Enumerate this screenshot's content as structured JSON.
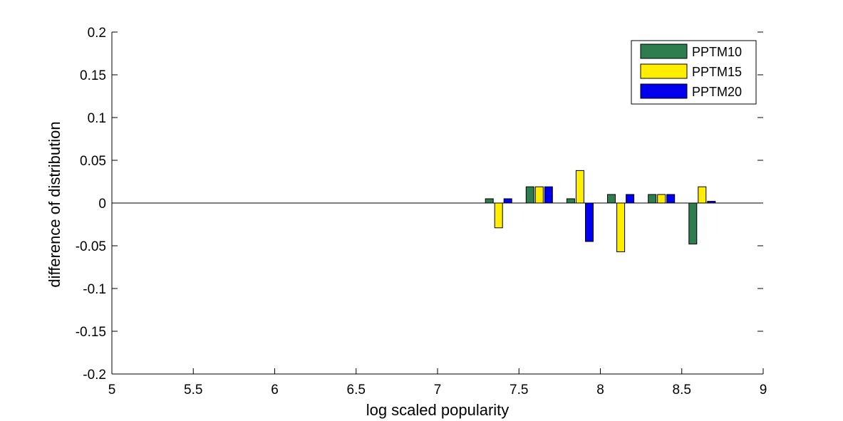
{
  "chart_data": {
    "type": "bar",
    "title": "",
    "xlabel": "log scaled popularity",
    "ylabel": "difference of distribution",
    "xlim": [
      5,
      9
    ],
    "ylim": [
      -0.2,
      0.2
    ],
    "x_ticks": [
      5,
      5.5,
      6,
      6.5,
      7,
      7.5,
      8,
      8.5,
      9
    ],
    "x_tick_labels": [
      "5",
      "5.5",
      "6",
      "6.5",
      "7",
      "7.5",
      "8",
      "8.5",
      "9"
    ],
    "y_ticks": [
      -0.2,
      -0.15,
      -0.1,
      -0.05,
      0,
      0.05,
      0.1,
      0.15,
      0.2
    ],
    "y_tick_labels": [
      "-0.2",
      "-0.15",
      "-0.1",
      "-0.05",
      "0",
      "0.05",
      "0.1",
      "0.15",
      "0.2"
    ],
    "grid": false,
    "legend_position": "top-right",
    "bar_group_width": 0.057,
    "x": [
      7.375,
      7.625,
      7.875,
      8.125,
      8.375,
      8.625
    ],
    "series": [
      {
        "name": "PPTM10",
        "color": "#2e7d4f",
        "values": [
          0.005,
          0.019,
          0.005,
          0.01,
          0.01,
          -0.048
        ]
      },
      {
        "name": "PPTM15",
        "color": "#ffee00",
        "values": [
          -0.029,
          0.019,
          0.038,
          -0.057,
          0.01,
          0.019
        ]
      },
      {
        "name": "PPTM20",
        "color": "#0000ee",
        "values": [
          0.005,
          0.019,
          -0.045,
          0.01,
          0.01,
          0.002
        ]
      }
    ]
  }
}
